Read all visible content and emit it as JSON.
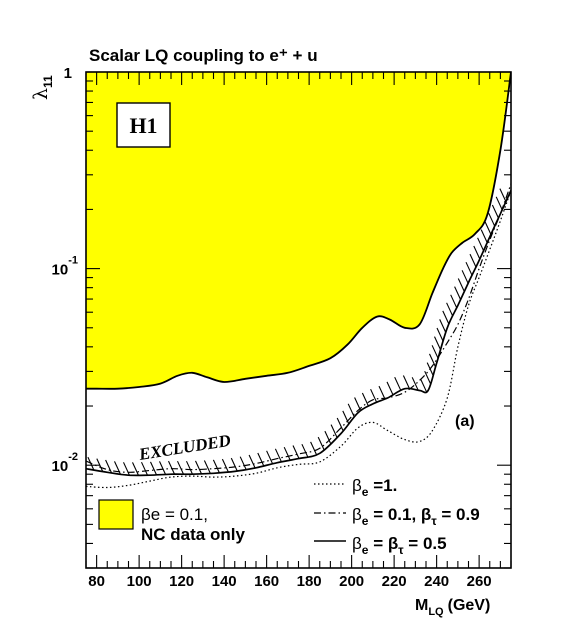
{
  "chart_data": {
    "type": "line",
    "title": "Scalar LQ coupling to e⁺ + u",
    "xlabel": "M",
    "xlabel_sub": "LQ",
    "xlabel_unit": "(GeV)",
    "ylabel": "λ",
    "ylabel_sub": "11",
    "x_range": [
      75,
      275
    ],
    "y_range": [
      0.003,
      1
    ],
    "y_scale": "log",
    "x_ticks": [
      "80",
      "100",
      "120",
      "140",
      "160",
      "180",
      "200",
      "220",
      "240",
      "260"
    ],
    "y_tick_labels": [
      {
        "value": 1,
        "base": "1",
        "exp": ""
      },
      {
        "value": 0.1,
        "base": "10",
        "exp": "-1"
      },
      {
        "value": 0.01,
        "base": "10",
        "exp": "-2"
      }
    ],
    "logo": "H1",
    "panel_label": "(a)",
    "excluded_label": "EXCLUDED",
    "shaded_region": {
      "label_line1": "βe = 0.1,",
      "label_line2": "NC data only",
      "color": "#ffff00",
      "lower_boundary": [
        [
          75,
          0.0245
        ],
        [
          80,
          0.0245
        ],
        [
          90,
          0.0245
        ],
        [
          100,
          0.025
        ],
        [
          110,
          0.026
        ],
        [
          118,
          0.0285
        ],
        [
          125,
          0.0295
        ],
        [
          132,
          0.028
        ],
        [
          140,
          0.0265
        ],
        [
          150,
          0.0275
        ],
        [
          160,
          0.0285
        ],
        [
          170,
          0.0295
        ],
        [
          180,
          0.032
        ],
        [
          190,
          0.035
        ],
        [
          198,
          0.041
        ],
        [
          205,
          0.05
        ],
        [
          212,
          0.057
        ],
        [
          218,
          0.055
        ],
        [
          225,
          0.05
        ],
        [
          232,
          0.052
        ],
        [
          238,
          0.075
        ],
        [
          243,
          0.1
        ],
        [
          247,
          0.12
        ],
        [
          252,
          0.135
        ],
        [
          258,
          0.15
        ],
        [
          264,
          0.19
        ],
        [
          270,
          0.4
        ],
        [
          275,
          1.0
        ]
      ]
    },
    "series": [
      {
        "name": "βe =1.",
        "legend_main": "β",
        "legend_sub": "e",
        "legend_rest": " =1.",
        "style": "dotted",
        "points": [
          [
            75,
            0.0078
          ],
          [
            85,
            0.0077
          ],
          [
            95,
            0.0079
          ],
          [
            105,
            0.0083
          ],
          [
            115,
            0.0087
          ],
          [
            125,
            0.0088
          ],
          [
            135,
            0.0087
          ],
          [
            145,
            0.0088
          ],
          [
            155,
            0.0091
          ],
          [
            165,
            0.0097
          ],
          [
            175,
            0.0101
          ],
          [
            185,
            0.0104
          ],
          [
            195,
            0.0125
          ],
          [
            203,
            0.0155
          ],
          [
            210,
            0.0165
          ],
          [
            217,
            0.015
          ],
          [
            225,
            0.0135
          ],
          [
            232,
            0.0132
          ],
          [
            238,
            0.015
          ],
          [
            245,
            0.022
          ],
          [
            250,
            0.04
          ],
          [
            255,
            0.065
          ],
          [
            260,
            0.09
          ],
          [
            265,
            0.125
          ],
          [
            270,
            0.175
          ],
          [
            275,
            0.25
          ]
        ]
      },
      {
        "name": "βe = 0.1, βτ = 0.9",
        "legend_main": "β",
        "legend_sub": "e",
        "legend_mid": " = 0.1, β",
        "legend_sub2": "τ",
        "legend_rest": " = 0.9",
        "style": "dashdot",
        "points": [
          [
            75,
            0.0105
          ],
          [
            85,
            0.0095
          ],
          [
            95,
            0.0092
          ],
          [
            105,
            0.0094
          ],
          [
            115,
            0.0096
          ],
          [
            125,
            0.0095
          ],
          [
            135,
            0.0096
          ],
          [
            145,
            0.0098
          ],
          [
            155,
            0.0102
          ],
          [
            165,
            0.0108
          ],
          [
            175,
            0.0114
          ],
          [
            185,
            0.0122
          ],
          [
            195,
            0.0155
          ],
          [
            203,
            0.019
          ],
          [
            210,
            0.0215
          ],
          [
            217,
            0.022
          ],
          [
            225,
            0.0235
          ],
          [
            232,
            0.027
          ],
          [
            238,
            0.032
          ],
          [
            245,
            0.042
          ],
          [
            250,
            0.052
          ],
          [
            255,
            0.07
          ],
          [
            260,
            0.1
          ],
          [
            265,
            0.14
          ],
          [
            270,
            0.19
          ],
          [
            275,
            0.27
          ]
        ]
      },
      {
        "name": "βe = βτ = 0.5",
        "legend_main": "β",
        "legend_sub": "e",
        "legend_mid": " = β",
        "legend_sub2": "τ",
        "legend_rest": " = 0.5",
        "style": "solid",
        "hatched": true,
        "points": [
          [
            75,
            0.0096
          ],
          [
            85,
            0.0092
          ],
          [
            95,
            0.0089
          ],
          [
            105,
            0.0089
          ],
          [
            115,
            0.009
          ],
          [
            125,
            0.009
          ],
          [
            135,
            0.0091
          ],
          [
            145,
            0.0093
          ],
          [
            155,
            0.0097
          ],
          [
            165,
            0.0103
          ],
          [
            175,
            0.0108
          ],
          [
            185,
            0.0115
          ],
          [
            195,
            0.0145
          ],
          [
            203,
            0.0185
          ],
          [
            210,
            0.0205
          ],
          [
            217,
            0.022
          ],
          [
            225,
            0.0245
          ],
          [
            232,
            0.024
          ],
          [
            236,
            0.024
          ],
          [
            240,
            0.033
          ],
          [
            245,
            0.05
          ],
          [
            250,
            0.065
          ],
          [
            255,
            0.085
          ],
          [
            260,
            0.11
          ],
          [
            265,
            0.145
          ],
          [
            270,
            0.19
          ],
          [
            275,
            0.25
          ]
        ]
      }
    ],
    "legend_position": "bottom-right"
  }
}
